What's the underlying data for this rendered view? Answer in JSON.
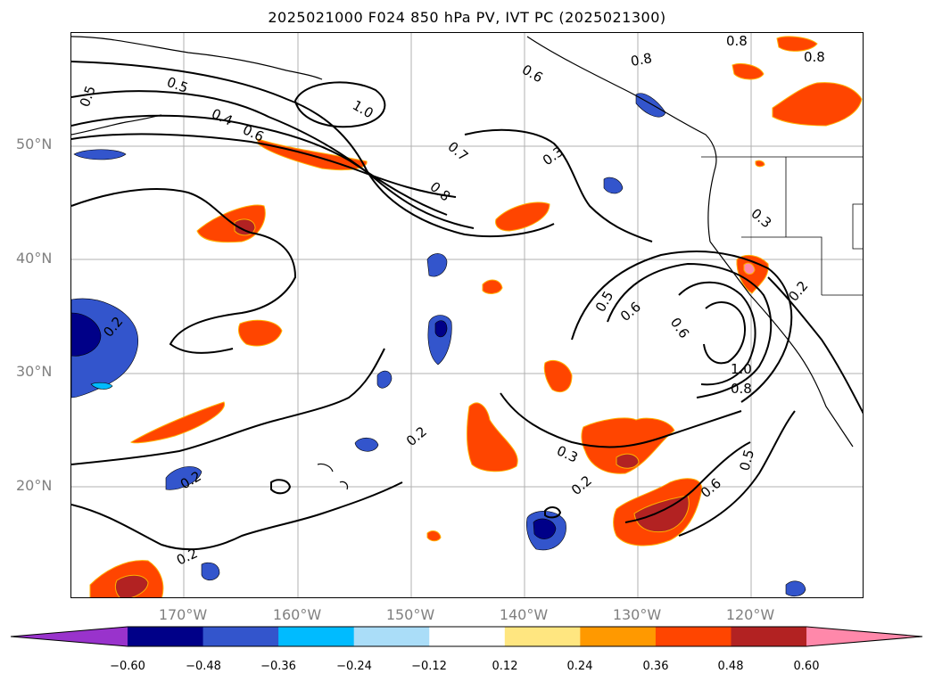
{
  "title": "2025021000 F024 850 hPa PV, IVT PC (2025021300)",
  "lat_labels": [
    "50°N",
    "40°N",
    "30°N",
    "20°N"
  ],
  "lon_labels": [
    "170°W",
    "160°W",
    "150°W",
    "140°W",
    "130°W",
    "120°W"
  ],
  "contour_labels": [
    "0.5",
    "0.5",
    "0.4",
    "0.6",
    "1.0",
    "0.7",
    "0.8",
    "0.6",
    "0.8",
    "0.8",
    "0.8",
    "0.3",
    "0.3",
    "0.2",
    "0.5",
    "0.6",
    "0.6",
    "1.0",
    "0.8",
    "0.2",
    "0.2",
    "0.3",
    "0.2",
    "0.6",
    "0.5",
    "0.2",
    "0.2"
  ],
  "colorbar": {
    "ticks": [
      "−0.60",
      "−0.48",
      "−0.36",
      "−0.24",
      "−0.12",
      "0.12",
      "0.24",
      "0.36",
      "0.48",
      "0.60"
    ],
    "colors": [
      "#9933cc",
      "#000088",
      "#3355cc",
      "#00bbff",
      "#aaddf8",
      "#ffffff",
      "#ffe680",
      "#ff9900",
      "#ff4500",
      "#b22222",
      "#ff88aa"
    ]
  },
  "colors": {
    "contour": "#000000",
    "coast": "#000000",
    "grid": "#b0b0b0",
    "axis_label": "#808080"
  }
}
